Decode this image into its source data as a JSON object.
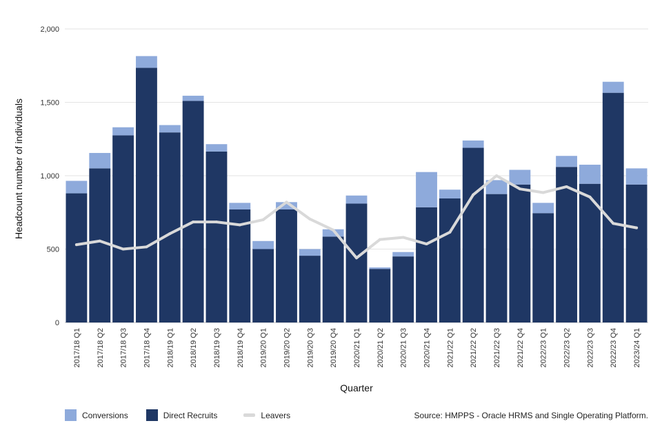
{
  "chart_data": {
    "type": "bar",
    "stacked": true,
    "categories": [
      "2017/18 Q1",
      "2017/18 Q2",
      "2017/18 Q3",
      "2017/18 Q4",
      "2018/19 Q1",
      "2018/19 Q2",
      "2018/19 Q3",
      "2018/19 Q4",
      "2019/20 Q1",
      "2019/20 Q2",
      "2019/20 Q3",
      "2019/20 Q4",
      "2020/21 Q1",
      "2020/21 Q2",
      "2020/21 Q3",
      "2020/21 Q4",
      "2021/22 Q1",
      "2021/22 Q2",
      "2021/22 Q3",
      "2021/22 Q4",
      "2022/23 Q1",
      "2022/23 Q2",
      "2022/23 Q3",
      "2022/23 Q4",
      "2023/24 Q1"
    ],
    "series": [
      {
        "name": "Direct Recruits",
        "kind": "bar",
        "color": "#1f3764",
        "values": [
          880,
          1050,
          1275,
          1735,
          1295,
          1510,
          1165,
          770,
          500,
          770,
          455,
          585,
          810,
          365,
          450,
          785,
          845,
          1190,
          875,
          940,
          745,
          1060,
          945,
          1565,
          940
        ]
      },
      {
        "name": "Conversions",
        "kind": "bar",
        "color": "#8eaadb",
        "values": [
          85,
          105,
          55,
          80,
          50,
          35,
          50,
          45,
          55,
          50,
          45,
          50,
          55,
          10,
          30,
          240,
          60,
          50,
          95,
          100,
          70,
          75,
          130,
          75,
          110
        ]
      },
      {
        "name": "Leavers",
        "kind": "line",
        "color": "#d9d9d9",
        "values": [
          530,
          555,
          500,
          515,
          605,
          685,
          685,
          665,
          700,
          820,
          705,
          630,
          440,
          565,
          580,
          535,
          615,
          870,
          1000,
          910,
          885,
          925,
          855,
          675,
          645
        ]
      }
    ],
    "title": "",
    "xlabel": "Quarter",
    "ylabel": "Headcount number of individuals",
    "ylim": [
      0,
      2000
    ],
    "yticks": [
      0,
      500,
      1000,
      1500,
      2000
    ],
    "ytick_labels": [
      "0",
      "500",
      "1,000",
      "1,500",
      "2,000"
    ],
    "grid": true,
    "legend_position": "bottom-left"
  },
  "legend": {
    "conversions": "Conversions",
    "direct_recruits": "Direct Recruits",
    "leavers": "Leavers"
  },
  "source": "Source: HMPPS - Oracle HRMS and Single Operating Platform."
}
